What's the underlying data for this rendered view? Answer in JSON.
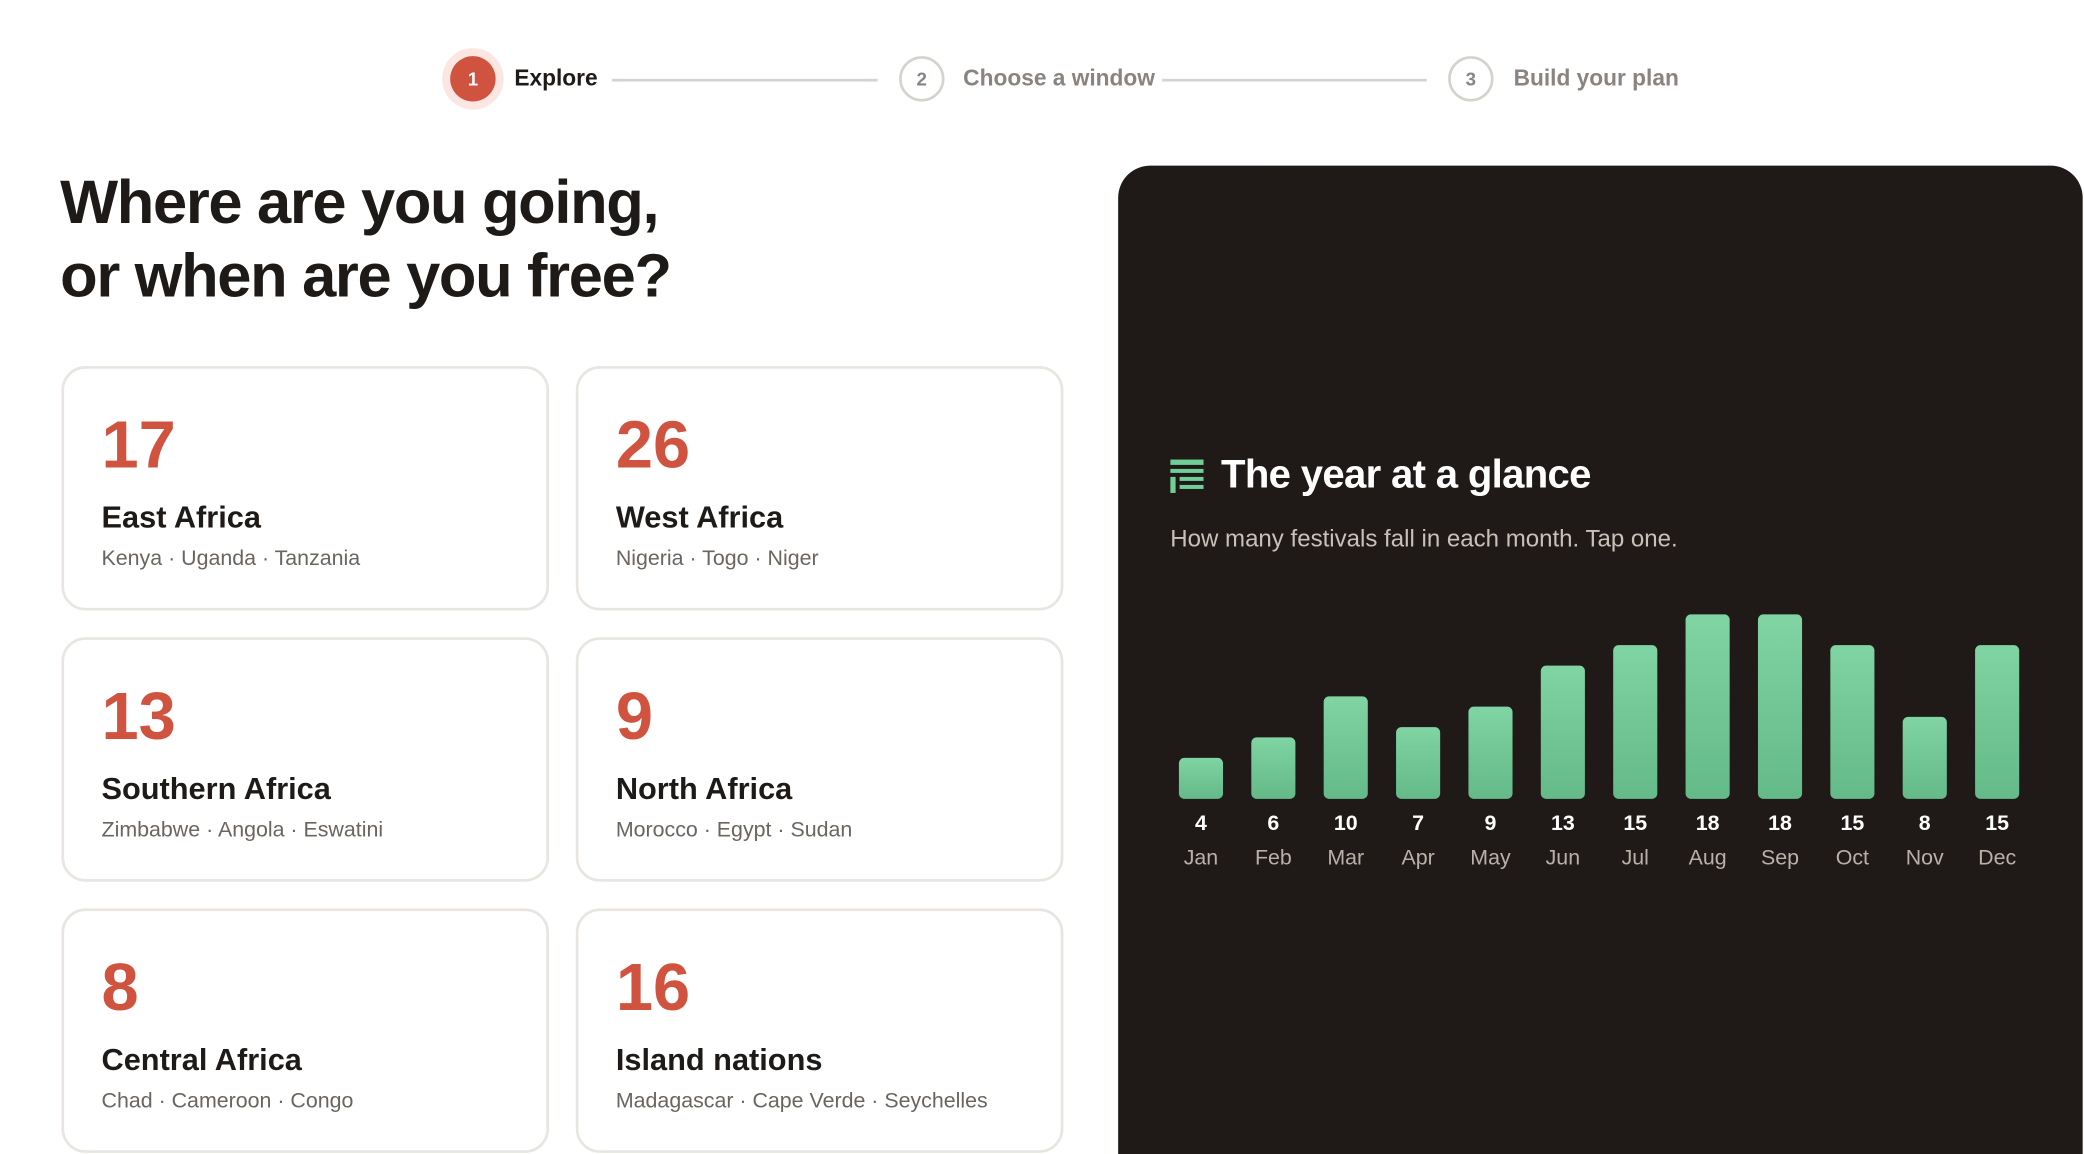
{
  "stepper": {
    "steps": [
      {
        "number": 1,
        "label": "Explore"
      },
      {
        "number": 2,
        "label": "Choose a window"
      },
      {
        "number": 3,
        "label": "Build your plan"
      }
    ]
  },
  "heading": {
    "lines": [
      "Where are you going,",
      "or when are you free?"
    ]
  },
  "regions": [
    {
      "count": 17,
      "name": "East Africa",
      "countries": "Kenya · Uganda · Tanzania"
    },
    {
      "count": 26,
      "name": "West Africa",
      "countries": "Nigeria · Togo · Niger"
    },
    {
      "count": 13,
      "name": "Southern Africa",
      "countries": "Zimbabwe · Angola · Eswatini"
    },
    {
      "count": 9,
      "name": "North Africa",
      "countries": "Morocco · Egypt · Sudan"
    },
    {
      "count": 8,
      "name": "Central Africa",
      "countries": "Chad · Cameroon · Congo"
    },
    {
      "count": 16,
      "name": "Island nations",
      "countries": "Madagascar · Cape Verde · Seychelles"
    }
  ],
  "chart_data": {
    "type": "bar",
    "title": "The year at a glance",
    "subtitle": "How many festivals fall in each month. Tap one.",
    "categories": [
      "Jan",
      "Feb",
      "Mar",
      "Apr",
      "May",
      "Jun",
      "Jul",
      "Aug",
      "Sep",
      "Oct",
      "Nov",
      "Dec"
    ],
    "values": [
      4,
      6,
      10,
      7,
      9,
      13,
      15,
      18,
      18,
      15,
      8,
      15
    ],
    "color": "#6fcf97"
  }
}
